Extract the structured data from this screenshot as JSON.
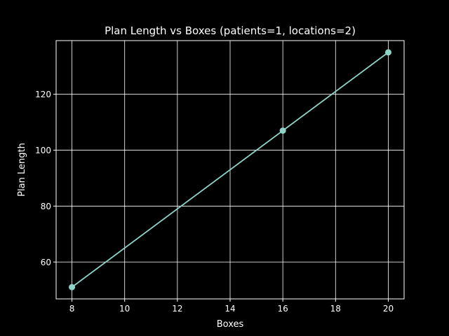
{
  "chart_data": {
    "type": "line",
    "title": "Plan Length vs Boxes (patients=1, locations=2)",
    "xlabel": "Boxes",
    "ylabel": "Plan Length",
    "xlim": [
      7.4,
      20.6
    ],
    "ylim": [
      46.8,
      139.2
    ],
    "xticks": [
      8,
      10,
      12,
      14,
      16,
      18,
      20
    ],
    "yticks": [
      60,
      80,
      100,
      120
    ],
    "grid": true,
    "series": [
      {
        "x": [
          8,
          16,
          20
        ],
        "y": [
          51,
          107,
          135
        ],
        "color": "#8dd3c7",
        "marker": "circle"
      }
    ]
  },
  "colors": {
    "background": "#000000",
    "foreground": "#ffffff",
    "line": "#8dd3c7"
  }
}
